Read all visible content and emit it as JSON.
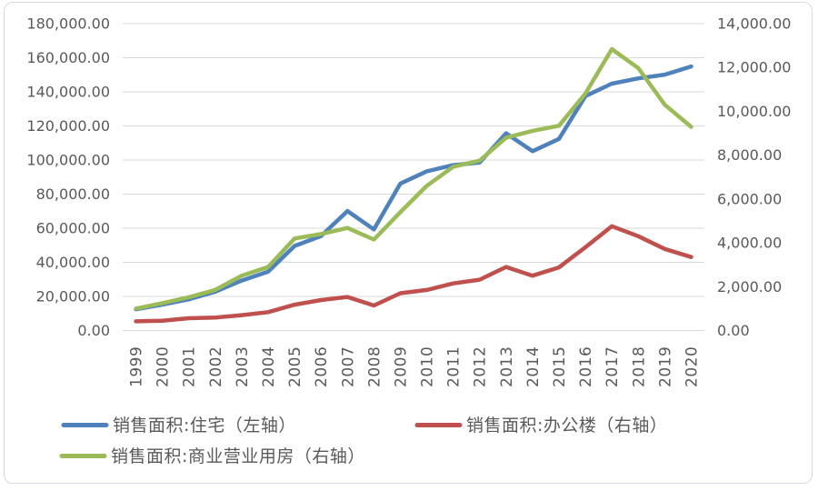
{
  "chart_data": {
    "type": "line",
    "title": "",
    "x": [
      "1999",
      "2000",
      "2001",
      "2002",
      "2003",
      "2004",
      "2005",
      "2006",
      "2007",
      "2008",
      "2009",
      "2010",
      "2011",
      "2012",
      "2013",
      "2014",
      "2015",
      "2016",
      "2017",
      "2018",
      "2019",
      "2020"
    ],
    "series": [
      {
        "id": "residential",
        "name": "销售面积:住宅（左轴）",
        "axis": "left",
        "color": "#4F81BD",
        "values": [
          12500,
          15200,
          18300,
          22800,
          29300,
          34500,
          49600,
          55400,
          70100,
          59300,
          86200,
          93400,
          97000,
          98500,
          115700,
          105200,
          112400,
          137500,
          144800,
          147900,
          150100,
          154900
        ]
      },
      {
        "id": "office",
        "name": "销售面积:办公楼（右轴）",
        "axis": "right",
        "color": "#C0504D",
        "values": [
          420,
          450,
          560,
          590,
          700,
          840,
          1180,
          1390,
          1530,
          1140,
          1700,
          1850,
          2150,
          2320,
          2900,
          2500,
          2880,
          3800,
          4760,
          4300,
          3720,
          3350
        ]
      },
      {
        "id": "commercial",
        "name": "销售面积:商业营业用房（右轴）",
        "axis": "right",
        "color": "#9BBB59",
        "values": [
          1000,
          1250,
          1520,
          1850,
          2500,
          2900,
          4200,
          4400,
          4680,
          4150,
          5400,
          6600,
          7470,
          7750,
          8800,
          9110,
          9340,
          10810,
          12840,
          11970,
          10300,
          9290
        ]
      }
    ],
    "left_axis": {
      "min": 0,
      "max": 180000,
      "ticks": [
        "0.00",
        "20,000.00",
        "40,000.00",
        "60,000.00",
        "80,000.00",
        "100,000.00",
        "120,000.00",
        "140,000.00",
        "160,000.00",
        "180,000.00"
      ]
    },
    "right_axis": {
      "min": 0,
      "max": 14000,
      "ticks": [
        "0.00",
        "2,000.00",
        "4,000.00",
        "6,000.00",
        "8,000.00",
        "10,000.00",
        "12,000.00",
        "14,000.00"
      ]
    },
    "grid": true,
    "legend_position": "bottom-left",
    "colors": {
      "text": "#595959",
      "gridline": "#D9D9D9",
      "background": "#FFFFFF",
      "border": "#D4D9E3"
    }
  }
}
